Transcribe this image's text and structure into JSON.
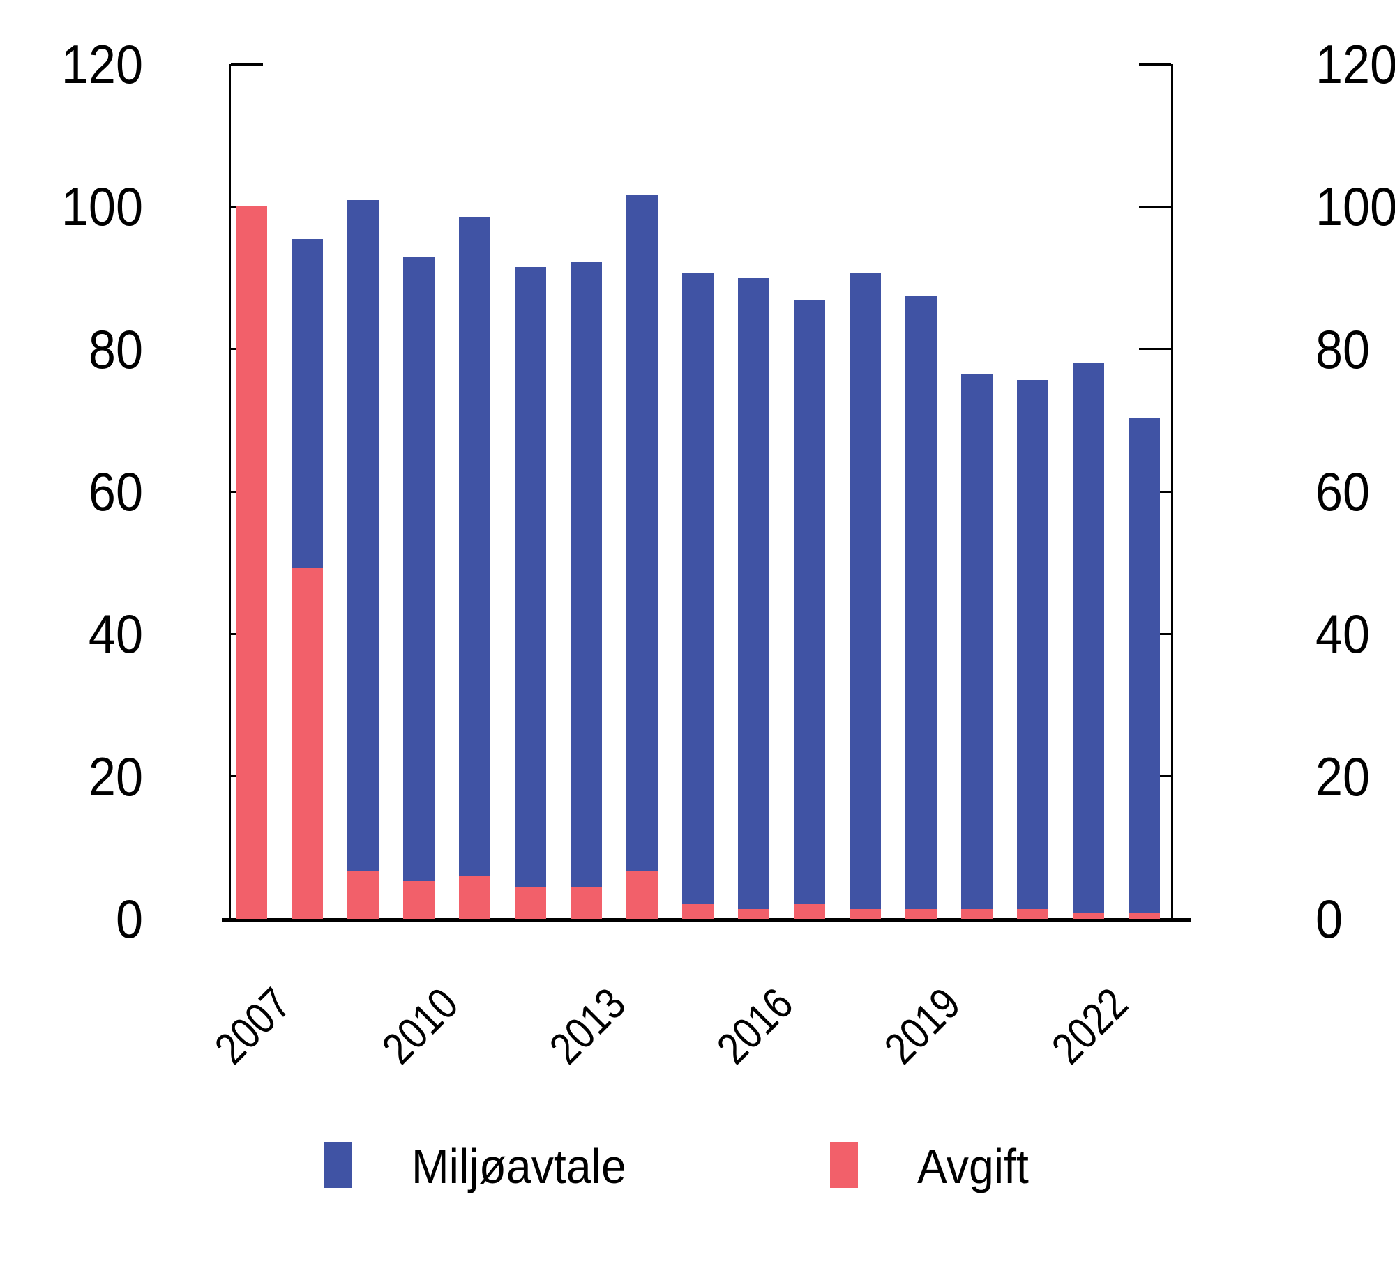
{
  "chart_data": {
    "type": "bar",
    "stacked": true,
    "title": "",
    "categories": [
      2007,
      2008,
      2009,
      2010,
      2011,
      2012,
      2013,
      2014,
      2015,
      2016,
      2017,
      2018,
      2019,
      2020,
      2021,
      2022,
      2023
    ],
    "series": [
      {
        "name": "Miljøavtale",
        "color": "#4053A4",
        "values": [
          0,
          46.2,
          94.1,
          87.7,
          92.5,
          87.0,
          87.7,
          94.8,
          88.6,
          88.6,
          84.7,
          89.3,
          86.1,
          75.1,
          74.3,
          77.3,
          69.5
        ]
      },
      {
        "name": "Avgift",
        "color": "#F2606A",
        "values": [
          100,
          49.2,
          6.8,
          5.3,
          6.1,
          4.5,
          4.5,
          6.8,
          2.1,
          1.4,
          2.1,
          1.4,
          1.4,
          1.4,
          1.4,
          0.8,
          0.8
        ]
      }
    ],
    "totals": [
      100,
      95.4,
      100.9,
      93.0,
      98.6,
      91.5,
      92.2,
      101.6,
      90.7,
      90.0,
      86.8,
      90.7,
      87.5,
      76.5,
      75.7,
      78.1,
      70.3
    ],
    "ylim": [
      0,
      120
    ],
    "yticks": [
      0,
      20,
      40,
      60,
      80,
      100,
      120
    ],
    "ytick_labels": [
      "0",
      "20",
      "40",
      "60",
      "80",
      "100",
      "120"
    ],
    "y_axis_sides": "both",
    "xtick_years": [
      2007,
      2010,
      2013,
      2016,
      2019,
      2022
    ],
    "xtick_labels": [
      "2007",
      "2010",
      "2013",
      "2016",
      "2019",
      "2022"
    ],
    "grid": false,
    "legend_position": "bottom"
  },
  "legend": {
    "items": [
      {
        "label": "Miljøavtale",
        "color": "#4053A4"
      },
      {
        "label": "Avgift",
        "color": "#F2606A"
      }
    ]
  },
  "colors": {
    "axis": "#000000",
    "background": "#ffffff"
  }
}
